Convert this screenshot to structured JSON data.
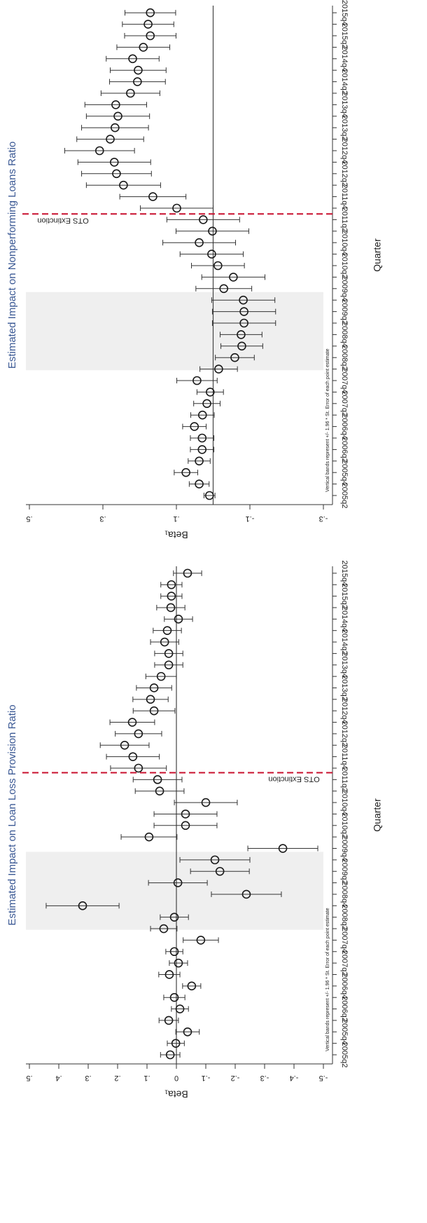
{
  "chart_data": [
    {
      "type": "errorbar",
      "title": "Estimated Impact on Nonperforming Loans Ratio",
      "x_label": "Quarter",
      "y_label": "Beta₁",
      "note": "Vertical bands represent +/- 1.96 * St. Error of each point estimate",
      "annotation": "OTS Extinction",
      "color": "#1a1a1a",
      "annotation_color": "#c8102e",
      "categories": [
        "2005q2",
        null,
        "2005q4",
        null,
        "2006q2",
        null,
        "2006q4",
        null,
        "2007q2",
        null,
        "2007q4",
        null,
        "2008q2",
        null,
        "2008q4",
        null,
        "2009q2",
        null,
        "2009q4",
        null,
        "2010q2",
        null,
        "2010q4",
        null,
        "2011q2",
        null,
        "2011q4",
        null,
        "2012q2",
        null,
        "2012q4",
        null,
        "2013q2",
        null,
        "2013q4",
        null,
        "2014q2",
        null,
        "2014q4",
        null,
        "2015q2",
        null,
        "2015q4"
      ],
      "values": [
        0.01,
        0.038,
        0.074,
        0.038,
        0.03,
        0.03,
        0.051,
        0.029,
        0.017,
        0.008,
        0.044,
        -0.015,
        -0.059,
        -0.078,
        -0.076,
        -0.084,
        -0.084,
        -0.082,
        -0.029,
        -0.055,
        -0.013,
        0.004,
        0.038,
        0.002,
        0.027,
        0.099,
        0.164,
        0.244,
        0.263,
        0.269,
        0.309,
        0.28,
        0.267,
        0.259,
        0.265,
        0.225,
        0.206,
        0.204,
        0.219,
        0.19,
        0.171,
        0.177,
        0.171
      ],
      "errors": [
        0.015,
        0.027,
        0.032,
        0.03,
        0.032,
        0.032,
        0.032,
        0.032,
        0.036,
        0.036,
        0.055,
        0.051,
        0.053,
        0.057,
        0.057,
        0.086,
        0.086,
        0.086,
        0.076,
        0.086,
        0.072,
        0.086,
        0.099,
        0.099,
        0.099,
        0.099,
        0.09,
        0.101,
        0.095,
        0.099,
        0.095,
        0.091,
        0.091,
        0.086,
        0.084,
        0.08,
        0.076,
        0.076,
        0.072,
        0.072,
        0.07,
        0.07,
        0.069
      ],
      "ylim": [
        -0.3,
        0.5
      ],
      "yticks": [
        {
          "value": 0.5,
          "label": ".5"
        },
        {
          "value": 0.3,
          "label": ".3"
        },
        {
          "value": 0.1,
          "label": ".1"
        },
        {
          "value": -0.1,
          "label": "-.1"
        },
        {
          "value": -0.3,
          "label": "-.3"
        }
      ]
    },
    {
      "type": "errorbar",
      "title": "Estimated Impact on Loan Loss Provision Ratio",
      "x_label": "Quarter",
      "y_label": "Beta₁",
      "note": "Vertical bands represent +/- 1.96 * St. Error of each point estimate",
      "annotation": "OTS Extinction",
      "color": "#1a1a1a",
      "annotation_color": "#c8102e",
      "categories": [
        "2005q2",
        null,
        "2005q4",
        null,
        "2006q2",
        null,
        "2006q4",
        null,
        "2007q2",
        null,
        "2007q4",
        null,
        "2008q2",
        null,
        "2008q4",
        null,
        "2009q2",
        null,
        "2009q4",
        null,
        "2010q2",
        null,
        "2010q4",
        null,
        "2011q2",
        null,
        "2011q4",
        null,
        "2012q2",
        null,
        "2012q4",
        null,
        "2013q2",
        null,
        "2013q4",
        null,
        "2014q2",
        null,
        "2014q4",
        null,
        "2015q2",
        null,
        "2015q4"
      ],
      "values": [
        0.021,
        0.002,
        -0.038,
        0.026,
        -0.012,
        0.007,
        -0.052,
        0.024,
        -0.007,
        0.007,
        -0.083,
        0.043,
        0.007,
        0.319,
        -0.238,
        -0.005,
        -0.148,
        -0.131,
        -0.362,
        0.093,
        -0.031,
        -0.031,
        -0.1,
        0.057,
        0.064,
        0.129,
        0.148,
        0.176,
        0.129,
        0.15,
        0.076,
        0.088,
        0.076,
        0.052,
        0.026,
        0.026,
        0.04,
        0.031,
        -0.007,
        0.019,
        0.017,
        0.017,
        -0.038
      ],
      "errors": [
        0.033,
        0.029,
        0.04,
        0.033,
        0.029,
        0.036,
        0.031,
        0.036,
        0.031,
        0.029,
        0.06,
        0.045,
        0.048,
        0.124,
        0.119,
        0.1,
        0.1,
        0.119,
        0.119,
        0.095,
        0.107,
        0.107,
        0.107,
        0.083,
        0.083,
        0.095,
        0.09,
        0.083,
        0.079,
        0.076,
        0.071,
        0.06,
        0.06,
        0.052,
        0.048,
        0.048,
        0.048,
        0.048,
        0.048,
        0.048,
        0.036,
        0.036,
        0.048
      ],
      "ylim": [
        -0.5,
        0.5
      ],
      "yticks": [
        {
          "value": 0.5,
          "label": ".5"
        },
        {
          "value": 0.4,
          "label": ".4"
        },
        {
          "value": 0.3,
          "label": ".3"
        },
        {
          "value": 0.2,
          "label": ".2"
        },
        {
          "value": 0.1,
          "label": ".1"
        },
        0,
        {
          "value": -0.1,
          "label": "-.1"
        },
        {
          "value": -0.2,
          "label": "-.2"
        },
        {
          "value": -0.3,
          "label": "-.3"
        },
        {
          "value": -0.4,
          "label": "-.4"
        },
        {
          "value": -0.5,
          "label": "-.5"
        }
      ]
    }
  ]
}
